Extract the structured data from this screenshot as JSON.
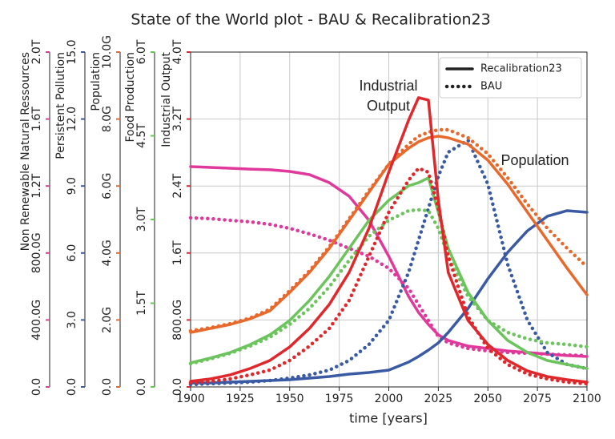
{
  "chart_data": {
    "type": "line",
    "title": "State of the World plot - BAU & Recalibration23",
    "xlabel": "time [years]",
    "xlim": [
      1900,
      2100
    ],
    "xticks": [
      1900,
      1925,
      1950,
      1975,
      2000,
      2025,
      2050,
      2075,
      2100
    ],
    "grid": true,
    "legend": "upper right",
    "scenarios": [
      {
        "name": "Recalibration23",
        "dash": "solid"
      },
      {
        "name": "BAU",
        "dash": "dotted"
      }
    ],
    "annotations": [
      {
        "text": [
          "Industrial",
          "Output"
        ]
      },
      {
        "text": [
          "Population"
        ]
      }
    ],
    "x": [
      1900,
      1910,
      1920,
      1930,
      1940,
      1950,
      1960,
      1970,
      1980,
      1990,
      2000,
      2010,
      2015,
      2020,
      2025,
      2030,
      2040,
      2050,
      2060,
      2070,
      2080,
      2090,
      2100
    ],
    "variables": [
      {
        "label": "Non Renewable Natural Ressources",
        "color": "#e0389b",
        "ylim": [
          0,
          2000000000000.0
        ],
        "yticks": [
          {
            "value": 0,
            "label": "0.0"
          },
          {
            "value": 400000000000.0,
            "label": "400.0G"
          },
          {
            "value": 800000000000.0,
            "label": "800.0G"
          },
          {
            "value": 1200000000000.0,
            "label": "1.2T"
          },
          {
            "value": 1600000000000.0,
            "label": "1.6T"
          },
          {
            "value": 2000000000000.0,
            "label": "2.0T"
          }
        ],
        "series": [
          {
            "values": [
              1316000000000.0,
              1311000000000.0,
              1306000000000.0,
              1301000000000.0,
              1297000000000.0,
              1287000000000.0,
              1268000000000.0,
              1220000000000.0,
              1139000000000.0,
              995000000000.0,
              780000000000.0,
              541000000000.0,
              445000000000.0,
              373000000000.0,
              311000000000.0,
              278000000000.0,
              244000000000.0,
              230000000000.0,
              215000000000.0,
              206000000000.0,
              196000000000.0,
              187000000000.0,
              182000000000.0
            ]
          },
          {
            "values": [
              1010000000000.0,
              1005000000000.0,
              995000000000.0,
              986000000000.0,
              971000000000.0,
              947000000000.0,
              914000000000.0,
              876000000000.0,
              828000000000.0,
              780000000000.0,
              708000000000.0,
              589000000000.0,
              493000000000.0,
              397000000000.0,
              301000000000.0,
              263000000000.0,
              230000000000.0,
              215000000000.0,
              206000000000.0,
              201000000000.0,
              196000000000.0,
              191000000000.0,
              187000000000.0
            ]
          }
        ]
      },
      {
        "label": "Persistent Pollution",
        "color": "#3a5ba3",
        "ylim": [
          0,
          15
        ],
        "yticks": [
          {
            "value": 0,
            "label": "0.0"
          },
          {
            "value": 3,
            "label": "3.0"
          },
          {
            "value": 6,
            "label": "6.0"
          },
          {
            "value": 9,
            "label": "9.0"
          },
          {
            "value": 12,
            "label": "12.0"
          },
          {
            "value": 15,
            "label": "15.0"
          }
        ],
        "series": [
          {
            "values": [
              0.179,
              0.179,
              0.215,
              0.251,
              0.287,
              0.323,
              0.395,
              0.467,
              0.574,
              0.646,
              0.754,
              1.112,
              1.364,
              1.651,
              1.974,
              2.44,
              3.517,
              4.845,
              6.029,
              6.998,
              7.644,
              7.895,
              7.823
            ]
          },
          {
            "values": [
              0.108,
              0.144,
              0.179,
              0.215,
              0.287,
              0.395,
              0.538,
              0.754,
              1.184,
              1.902,
              2.978,
              5.132,
              6.567,
              8.002,
              9.438,
              10.514,
              11.053,
              9.079,
              5.49,
              2.978,
              1.543,
              1.005,
              0.825
            ]
          }
        ]
      },
      {
        "label": "Population",
        "color": "#e8692b",
        "ylim": [
          0,
          10000000000.0
        ],
        "yticks": [
          {
            "value": 0,
            "label": "0.0"
          },
          {
            "value": 2000000000.0,
            "label": "2.0G"
          },
          {
            "value": 4000000000.0,
            "label": "4.0G"
          },
          {
            "value": 6000000000.0,
            "label": "6.0G"
          },
          {
            "value": 8000000000.0,
            "label": "8.0G"
          },
          {
            "value": 10000000000.0,
            "label": "10.0G"
          }
        ],
        "series": [
          {
            "values": [
              1627000000.0,
              1746000000.0,
              1866000000.0,
              2033000000.0,
              2273000000.0,
              2823000000.0,
              3421000000.0,
              4139000000.0,
              4976000000.0,
              5813000000.0,
              6651000000.0,
              7129000000.0,
              7321000000.0,
              7440000000.0,
              7488000000.0,
              7440000000.0,
              7249000000.0,
              6770000000.0,
              6053000000.0,
              5215000000.0,
              4378000000.0,
              3541000000.0,
              2751000000.0
            ]
          },
          {
            "values": [
              1675000000.0,
              1770000000.0,
              1890000000.0,
              2057000000.0,
              2321000000.0,
              2871000000.0,
              3469000000.0,
              4187000000.0,
              5024000000.0,
              5861000000.0,
              6651000000.0,
              7249000000.0,
              7488000000.0,
              7608000000.0,
              7679000000.0,
              7679000000.0,
              7440000000.0,
              6962000000.0,
              6244000000.0,
              5455000000.0,
              4737000000.0,
              4139000000.0,
              3589000000.0
            ]
          }
        ]
      },
      {
        "label": "Food Production",
        "color": "#6cc45c",
        "ylim": [
          0,
          6000000000000.0
        ],
        "yticks": [
          {
            "value": 0,
            "label": "0.0"
          },
          {
            "value": 1500000000000.0,
            "label": "1.5T"
          },
          {
            "value": 3000000000000.0,
            "label": "3.0T"
          },
          {
            "value": 4500000000000.0,
            "label": "4.5T"
          },
          {
            "value": 6000000000000.0,
            "label": "6.0T"
          }
        ],
        "series": [
          {
            "values": [
              431000000000.0,
              517000000000.0,
              617000000000.0,
              758000000000.0,
              933000000000.0,
              1191000000000.0,
              1550000000000.0,
              1981000000000.0,
              2483000000000.0,
              2986000000000.0,
              3344000000000.0,
              3603000000000.0,
              3660000000000.0,
              3746000000000.0,
              3129000000000.0,
              2483000000000.0,
              1694000000000.0,
              1191000000000.0,
              833000000000.0,
              617000000000.0,
              474000000000.0,
              402000000000.0,
              330000000000.0
            ]
          },
          {
            "values": [
              416000000000.0,
              502000000000.0,
              603000000000.0,
              732000000000.0,
              890000000000.0,
              1120000000000.0,
              1407000000000.0,
              1794000000000.0,
              2268000000000.0,
              2699000000000.0,
              2986000000000.0,
              3158000000000.0,
              3172000000000.0,
              3158000000000.0,
              2842000000000.0,
              2340000000000.0,
              1622000000000.0,
              1191000000000.0,
              976000000000.0,
              861000000000.0,
              789000000000.0,
              761000000000.0,
              718000000000.0
            ]
          }
        ]
      },
      {
        "label": "Industrial Output",
        "color": "#e0282c",
        "ylim": [
          0,
          4000000000000.0
        ],
        "yticks": [
          {
            "value": 0,
            "label": "0.0"
          },
          {
            "value": 800000000000.0,
            "label": "800.0G"
          },
          {
            "value": 1600000000000.0,
            "label": "1.6T"
          },
          {
            "value": 2400000000000.0,
            "label": "2.4T"
          },
          {
            "value": 3200000000000.0,
            "label": "3.2T"
          },
          {
            "value": 4000000000000.0,
            "label": "4.0T"
          }
        ],
        "series": [
          {
            "values": [
              67000000000.0,
              96000000000.0,
              144000000000.0,
              220000000000.0,
              316000000000.0,
              478000000000.0,
              700000000000.0,
              986000000000.0,
              1368000000000.0,
              1895000000000.0,
              2565000000000.0,
              3187000000000.0,
              3455000000000.0,
              3426000000000.0,
              2230000000000.0,
              1368000000000.0,
              794000000000.0,
              507000000000.0,
              316000000000.0,
              191000000000.0,
              124000000000.0,
              86000000000.0,
              57000000000.0
            ]
          },
          {
            "values": [
              48000000000.0,
              67000000000.0,
              96000000000.0,
              144000000000.0,
              201000000000.0,
              316000000000.0,
              488000000000.0,
              699000000000.0,
              1033000000000.0,
              1560000000000.0,
              2086000000000.0,
              2469000000000.0,
              2612000000000.0,
              2565000000000.0,
              2134000000000.0,
              1560000000000.0,
              842000000000.0,
              459000000000.0,
              268000000000.0,
              153000000000.0,
              96000000000.0,
              57000000000.0,
              38000000000.0
            ]
          }
        ]
      }
    ]
  }
}
